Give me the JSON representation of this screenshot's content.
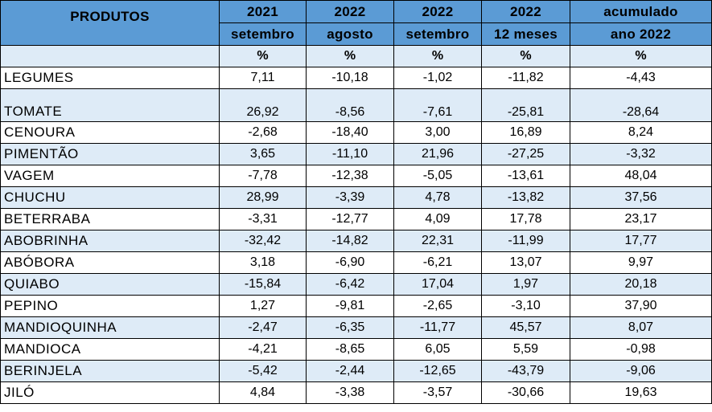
{
  "header": {
    "product_label": "PRODUTOS",
    "columns": [
      {
        "year": "2021",
        "period": "setembro"
      },
      {
        "year": "2022",
        "period": "agosto"
      },
      {
        "year": "2022",
        "period": "setembro"
      },
      {
        "year": "2022",
        "period": "12 meses"
      },
      {
        "year": "acumulado",
        "period": "ano 2022"
      }
    ],
    "unit_label": "%"
  },
  "rows": [
    {
      "name": "LEGUMES",
      "values": [
        "7,11",
        "-10,18",
        "-1,02",
        "-11,82",
        "-4,43"
      ]
    },
    {
      "name": "TOMATE",
      "values": [
        "26,92",
        "-8,56",
        "-7,61",
        "-25,81",
        "-28,64"
      ]
    },
    {
      "name": "CENOURA",
      "values": [
        "-2,68",
        "-18,40",
        "3,00",
        "16,89",
        "8,24"
      ]
    },
    {
      "name": "PIMENTÃO",
      "values": [
        "3,65",
        "-11,10",
        "21,96",
        "-27,25",
        "-3,32"
      ]
    },
    {
      "name": "VAGEM",
      "values": [
        "-7,78",
        "-12,38",
        "-5,05",
        "-13,61",
        "48,04"
      ]
    },
    {
      "name": "CHUCHU",
      "values": [
        "28,99",
        "-3,39",
        "4,78",
        "-13,82",
        "37,56"
      ]
    },
    {
      "name": "BETERRABA",
      "values": [
        "-3,31",
        "-12,77",
        "4,09",
        "17,78",
        "23,17"
      ]
    },
    {
      "name": "ABOBRINHA",
      "values": [
        "-32,42",
        "-14,82",
        "22,31",
        "-11,99",
        "17,77"
      ]
    },
    {
      "name": "ABÓBORA",
      "values": [
        "3,18",
        "-6,90",
        "-6,21",
        "13,07",
        "9,97"
      ]
    },
    {
      "name": "QUIABO",
      "values": [
        "-15,84",
        "-6,42",
        "17,04",
        "1,97",
        "20,18"
      ]
    },
    {
      "name": "PEPINO",
      "values": [
        "1,27",
        "-9,81",
        "-2,65",
        "-3,10",
        "37,90"
      ]
    },
    {
      "name": "MANDIOQUINHA",
      "values": [
        "-2,47",
        "-6,35",
        "-11,77",
        "45,57",
        "8,07"
      ]
    },
    {
      "name": "MANDIOCA",
      "values": [
        "-4,21",
        "-8,65",
        "6,05",
        "5,59",
        "-0,98"
      ]
    },
    {
      "name": "BERINJELA",
      "values": [
        "-5,42",
        "-2,44",
        "-12,65",
        "-43,79",
        "-9,06"
      ]
    },
    {
      "name": "JILÓ",
      "values": [
        "4,84",
        "-3,38",
        "-3,57",
        "-30,66",
        "19,63"
      ]
    }
  ]
}
